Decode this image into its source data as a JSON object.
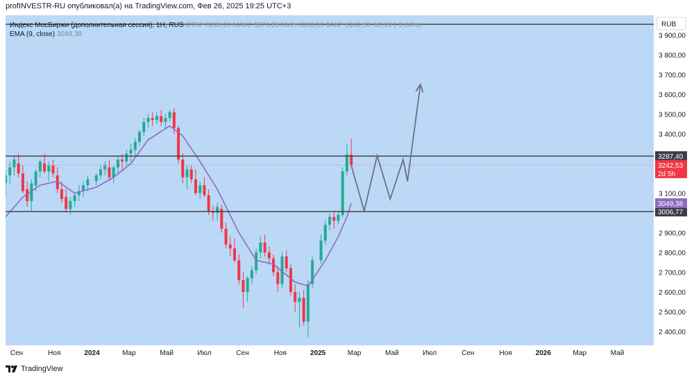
{
  "header": {
    "publisher_line": "profINVESTR-RU опубликовал(а) на TradingView.com, Фев 26, 2025 19:25 UTC+3"
  },
  "legend": {
    "line1_symbol": "Индекс МосБиржи (дополнительная сессия), 1Н, RUS",
    "line1_ohlc": "ОТКР 3295,00  МАКС 3374,86  МИН 3233,39  ЗАКР 3242,53  -53,09 (-1,64%)",
    "line2_name": "EMA (9, close)",
    "line2_value": "3049,38"
  },
  "currency": "RUB",
  "footer": {
    "brand": "TradingView"
  },
  "colors": {
    "background": "#bbd8f7",
    "up": "#22ab94",
    "down": "#f23645",
    "ema": "#8e6bbf",
    "level_line": "#444444",
    "projection": "#6a7180"
  },
  "chart_data": {
    "type": "candlestick",
    "y_range": [
      2330,
      4000
    ],
    "y_ticks": [
      2400,
      2500,
      2600,
      2700,
      2800,
      2900,
      3000,
      3100,
      3200,
      3300,
      3400,
      3500,
      3600,
      3700,
      3800,
      3900
    ],
    "y_tick_labels": [
      "2 400,00",
      "2 500,00",
      "2 600,00",
      "2 700,00",
      "2 800,00",
      "2 900,00",
      "",
      "3 100,00",
      "",
      "",
      "3 400,00",
      "3 500,00",
      "3 600,00",
      "3 700,00",
      "3 800,00",
      "3 900,00"
    ],
    "x_range": [
      "2023-08-14",
      "2026-06-29"
    ],
    "x_ticks": [
      {
        "date": "2023-09-01",
        "label": "Сен",
        "bold": false
      },
      {
        "date": "2023-11-01",
        "label": "Ноя",
        "bold": false
      },
      {
        "date": "2024-01-01",
        "label": "2024",
        "bold": true
      },
      {
        "date": "2024-03-01",
        "label": "Мар",
        "bold": false
      },
      {
        "date": "2024-05-01",
        "label": "Май",
        "bold": false
      },
      {
        "date": "2024-07-01",
        "label": "Июл",
        "bold": false
      },
      {
        "date": "2024-09-01",
        "label": "Сен",
        "bold": false
      },
      {
        "date": "2024-11-01",
        "label": "Ноя",
        "bold": false
      },
      {
        "date": "2025-01-01",
        "label": "2025",
        "bold": true
      },
      {
        "date": "2025-03-01",
        "label": "Мар",
        "bold": false
      },
      {
        "date": "2025-05-01",
        "label": "Май",
        "bold": false
      },
      {
        "date": "2025-07-01",
        "label": "Июл",
        "bold": false
      },
      {
        "date": "2025-09-01",
        "label": "Сен",
        "bold": false
      },
      {
        "date": "2025-11-01",
        "label": "Ноя",
        "bold": false
      },
      {
        "date": "2026-01-01",
        "label": "2026",
        "bold": true
      },
      {
        "date": "2026-03-01",
        "label": "Мар",
        "bold": false
      },
      {
        "date": "2026-05-01",
        "label": "Май",
        "bold": false
      }
    ],
    "candles": [
      {
        "date": "2023-08-14",
        "o": 3150,
        "h": 3220,
        "l": 3080,
        "c": 3190
      },
      {
        "date": "2023-08-21",
        "o": 3190,
        "h": 3260,
        "l": 3150,
        "c": 3230
      },
      {
        "date": "2023-08-28",
        "o": 3230,
        "h": 3290,
        "l": 3190,
        "c": 3270
      },
      {
        "date": "2023-09-04",
        "o": 3250,
        "h": 3300,
        "l": 3180,
        "c": 3200
      },
      {
        "date": "2023-09-11",
        "o": 3200,
        "h": 3240,
        "l": 3100,
        "c": 3110
      },
      {
        "date": "2023-09-18",
        "o": 3120,
        "h": 3160,
        "l": 3030,
        "c": 3060
      },
      {
        "date": "2023-09-25",
        "o": 3060,
        "h": 3170,
        "l": 3010,
        "c": 3150
      },
      {
        "date": "2023-10-02",
        "o": 3140,
        "h": 3220,
        "l": 3110,
        "c": 3210
      },
      {
        "date": "2023-10-09",
        "o": 3210,
        "h": 3270,
        "l": 3180,
        "c": 3260
      },
      {
        "date": "2023-10-16",
        "o": 3250,
        "h": 3300,
        "l": 3200,
        "c": 3210
      },
      {
        "date": "2023-10-23",
        "o": 3210,
        "h": 3260,
        "l": 3160,
        "c": 3240
      },
      {
        "date": "2023-10-30",
        "o": 3240,
        "h": 3270,
        "l": 3180,
        "c": 3200
      },
      {
        "date": "2023-11-06",
        "o": 3190,
        "h": 3230,
        "l": 3100,
        "c": 3120
      },
      {
        "date": "2023-11-13",
        "o": 3120,
        "h": 3160,
        "l": 3050,
        "c": 3070
      },
      {
        "date": "2023-11-20",
        "o": 3080,
        "h": 3120,
        "l": 3000,
        "c": 3020
      },
      {
        "date": "2023-11-27",
        "o": 3020,
        "h": 3080,
        "l": 2990,
        "c": 3060
      },
      {
        "date": "2023-12-04",
        "o": 3060,
        "h": 3100,
        "l": 3030,
        "c": 3090
      },
      {
        "date": "2023-12-11",
        "o": 3090,
        "h": 3140,
        "l": 3060,
        "c": 3110
      },
      {
        "date": "2023-12-18",
        "o": 3110,
        "h": 3160,
        "l": 3080,
        "c": 3140
      },
      {
        "date": "2023-12-25",
        "o": 3140,
        "h": 3190,
        "l": 3110,
        "c": 3170
      },
      {
        "date": "2024-01-08",
        "o": 3160,
        "h": 3200,
        "l": 3140,
        "c": 3190
      },
      {
        "date": "2024-01-15",
        "o": 3190,
        "h": 3240,
        "l": 3170,
        "c": 3220
      },
      {
        "date": "2024-01-22",
        "o": 3220,
        "h": 3260,
        "l": 3190,
        "c": 3240
      },
      {
        "date": "2024-01-29",
        "o": 3230,
        "h": 3270,
        "l": 3160,
        "c": 3180
      },
      {
        "date": "2024-02-05",
        "o": 3180,
        "h": 3240,
        "l": 3150,
        "c": 3230
      },
      {
        "date": "2024-02-12",
        "o": 3230,
        "h": 3290,
        "l": 3200,
        "c": 3270
      },
      {
        "date": "2024-02-19",
        "o": 3270,
        "h": 3300,
        "l": 3210,
        "c": 3260
      },
      {
        "date": "2024-02-26",
        "o": 3260,
        "h": 3320,
        "l": 3240,
        "c": 3300
      },
      {
        "date": "2024-03-04",
        "o": 3300,
        "h": 3350,
        "l": 3260,
        "c": 3320
      },
      {
        "date": "2024-03-11",
        "o": 3320,
        "h": 3380,
        "l": 3290,
        "c": 3360
      },
      {
        "date": "2024-03-18",
        "o": 3360,
        "h": 3420,
        "l": 3340,
        "c": 3410
      },
      {
        "date": "2024-03-25",
        "o": 3410,
        "h": 3480,
        "l": 3390,
        "c": 3460
      },
      {
        "date": "2024-04-01",
        "o": 3460,
        "h": 3500,
        "l": 3430,
        "c": 3480
      },
      {
        "date": "2024-04-08",
        "o": 3480,
        "h": 3510,
        "l": 3440,
        "c": 3470
      },
      {
        "date": "2024-04-15",
        "o": 3470,
        "h": 3510,
        "l": 3450,
        "c": 3490
      },
      {
        "date": "2024-04-22",
        "o": 3490,
        "h": 3520,
        "l": 3440,
        "c": 3460
      },
      {
        "date": "2024-04-29",
        "o": 3460,
        "h": 3500,
        "l": 3430,
        "c": 3480
      },
      {
        "date": "2024-05-06",
        "o": 3480,
        "h": 3520,
        "l": 3460,
        "c": 3510
      },
      {
        "date": "2024-05-13",
        "o": 3510,
        "h": 3530,
        "l": 3400,
        "c": 3430
      },
      {
        "date": "2024-05-20",
        "o": 3430,
        "h": 3440,
        "l": 3250,
        "c": 3270
      },
      {
        "date": "2024-05-27",
        "o": 3270,
        "h": 3300,
        "l": 3150,
        "c": 3180
      },
      {
        "date": "2024-06-03",
        "o": 3180,
        "h": 3240,
        "l": 3120,
        "c": 3220
      },
      {
        "date": "2024-06-10",
        "o": 3220,
        "h": 3240,
        "l": 3150,
        "c": 3170
      },
      {
        "date": "2024-06-17",
        "o": 3170,
        "h": 3220,
        "l": 3090,
        "c": 3100
      },
      {
        "date": "2024-06-24",
        "o": 3100,
        "h": 3160,
        "l": 3070,
        "c": 3140
      },
      {
        "date": "2024-07-01",
        "o": 3140,
        "h": 3180,
        "l": 3080,
        "c": 3090
      },
      {
        "date": "2024-07-08",
        "o": 3090,
        "h": 3120,
        "l": 2990,
        "c": 3010
      },
      {
        "date": "2024-07-15",
        "o": 3010,
        "h": 3040,
        "l": 2960,
        "c": 3000
      },
      {
        "date": "2024-07-22",
        "o": 3000,
        "h": 3050,
        "l": 2960,
        "c": 3030
      },
      {
        "date": "2024-07-29",
        "o": 3020,
        "h": 3040,
        "l": 2900,
        "c": 2920
      },
      {
        "date": "2024-08-05",
        "o": 2920,
        "h": 2950,
        "l": 2820,
        "c": 2840
      },
      {
        "date": "2024-08-12",
        "o": 2840,
        "h": 2880,
        "l": 2780,
        "c": 2820
      },
      {
        "date": "2024-08-19",
        "o": 2820,
        "h": 2870,
        "l": 2750,
        "c": 2760
      },
      {
        "date": "2024-08-26",
        "o": 2760,
        "h": 2790,
        "l": 2640,
        "c": 2660
      },
      {
        "date": "2024-09-02",
        "o": 2660,
        "h": 2700,
        "l": 2520,
        "c": 2600
      },
      {
        "date": "2024-09-09",
        "o": 2600,
        "h": 2680,
        "l": 2550,
        "c": 2670
      },
      {
        "date": "2024-09-16",
        "o": 2670,
        "h": 2730,
        "l": 2640,
        "c": 2710
      },
      {
        "date": "2024-09-23",
        "o": 2710,
        "h": 2820,
        "l": 2690,
        "c": 2800
      },
      {
        "date": "2024-09-30",
        "o": 2800,
        "h": 2880,
        "l": 2770,
        "c": 2850
      },
      {
        "date": "2024-10-07",
        "o": 2850,
        "h": 2890,
        "l": 2780,
        "c": 2800
      },
      {
        "date": "2024-10-14",
        "o": 2800,
        "h": 2830,
        "l": 2740,
        "c": 2770
      },
      {
        "date": "2024-10-21",
        "o": 2770,
        "h": 2790,
        "l": 2680,
        "c": 2700
      },
      {
        "date": "2024-10-28",
        "o": 2700,
        "h": 2730,
        "l": 2600,
        "c": 2640
      },
      {
        "date": "2024-11-04",
        "o": 2640,
        "h": 2800,
        "l": 2620,
        "c": 2780
      },
      {
        "date": "2024-11-11",
        "o": 2780,
        "h": 2810,
        "l": 2700,
        "c": 2720
      },
      {
        "date": "2024-11-18",
        "o": 2720,
        "h": 2740,
        "l": 2580,
        "c": 2600
      },
      {
        "date": "2024-11-25",
        "o": 2600,
        "h": 2640,
        "l": 2500,
        "c": 2550
      },
      {
        "date": "2024-12-02",
        "o": 2550,
        "h": 2600,
        "l": 2420,
        "c": 2570
      },
      {
        "date": "2024-12-09",
        "o": 2570,
        "h": 2610,
        "l": 2430,
        "c": 2450
      },
      {
        "date": "2024-12-16",
        "o": 2450,
        "h": 2660,
        "l": 2370,
        "c": 2640
      },
      {
        "date": "2024-12-23",
        "o": 2640,
        "h": 2780,
        "l": 2620,
        "c": 2760
      },
      {
        "date": "2025-01-06",
        "o": 2760,
        "h": 2890,
        "l": 2740,
        "c": 2860
      },
      {
        "date": "2025-01-13",
        "o": 2860,
        "h": 2960,
        "l": 2840,
        "c": 2940
      },
      {
        "date": "2025-01-20",
        "o": 2940,
        "h": 3000,
        "l": 2910,
        "c": 2980
      },
      {
        "date": "2025-01-27",
        "o": 2980,
        "h": 3010,
        "l": 2920,
        "c": 2960
      },
      {
        "date": "2025-02-03",
        "o": 2960,
        "h": 3010,
        "l": 2940,
        "c": 2990
      },
      {
        "date": "2025-02-10",
        "o": 2990,
        "h": 3230,
        "l": 2980,
        "c": 3210
      },
      {
        "date": "2025-02-17",
        "o": 3210,
        "h": 3350,
        "l": 3190,
        "c": 3295
      },
      {
        "date": "2025-02-24",
        "o": 3295,
        "h": 3374.86,
        "l": 3233.39,
        "c": 3242.53
      }
    ],
    "ema_line": [
      {
        "date": "2023-08-14",
        "v": 2980
      },
      {
        "date": "2023-09-11",
        "v": 3080
      },
      {
        "date": "2023-10-09",
        "v": 3140
      },
      {
        "date": "2023-11-06",
        "v": 3160
      },
      {
        "date": "2023-12-04",
        "v": 3100
      },
      {
        "date": "2024-01-08",
        "v": 3130
      },
      {
        "date": "2024-02-05",
        "v": 3180
      },
      {
        "date": "2024-03-04",
        "v": 3250
      },
      {
        "date": "2024-04-01",
        "v": 3370
      },
      {
        "date": "2024-05-06",
        "v": 3440
      },
      {
        "date": "2024-05-27",
        "v": 3390
      },
      {
        "date": "2024-06-24",
        "v": 3260
      },
      {
        "date": "2024-07-22",
        "v": 3120
      },
      {
        "date": "2024-08-26",
        "v": 2900
      },
      {
        "date": "2024-09-23",
        "v": 2760
      },
      {
        "date": "2024-10-21",
        "v": 2740
      },
      {
        "date": "2024-11-25",
        "v": 2650
      },
      {
        "date": "2024-12-16",
        "v": 2630
      },
      {
        "date": "2025-01-13",
        "v": 2760
      },
      {
        "date": "2025-02-03",
        "v": 2880
      },
      {
        "date": "2025-02-17",
        "v": 2980
      },
      {
        "date": "2025-02-24",
        "v": 3049.38
      }
    ],
    "levels": [
      {
        "value": 3287.4,
        "label": "3287,40"
      },
      {
        "value": 3006.77,
        "label": "3006,77"
      }
    ],
    "current_price": {
      "value": 3242.53,
      "label": "3242,53",
      "countdown": "2d 5h"
    },
    "ema_value_label": "3049,38",
    "projection_path": [
      {
        "date": "2025-02-24",
        "v": 3240
      },
      {
        "date": "2025-03-17",
        "v": 3010
      },
      {
        "date": "2025-04-07",
        "v": 3290
      },
      {
        "date": "2025-04-28",
        "v": 3070
      },
      {
        "date": "2025-05-19",
        "v": 3270
      },
      {
        "date": "2025-05-26",
        "v": 3160
      },
      {
        "date": "2025-06-16",
        "v": 3650
      }
    ]
  }
}
